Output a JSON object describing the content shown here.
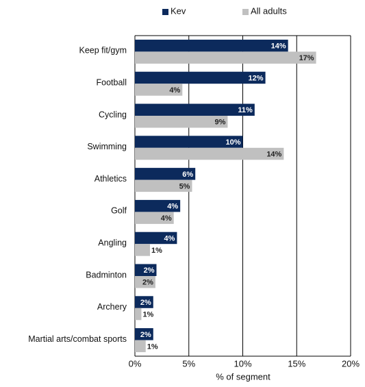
{
  "chart_data": {
    "type": "hbar",
    "xlabel": "% of segment",
    "categories": [
      "Keep fit/gym",
      "Football",
      "Cycling",
      "Swimming",
      "Athletics",
      "Golf",
      "Angling",
      "Badminton",
      "Archery",
      "Martial arts/combat sports"
    ],
    "series": [
      {
        "name": "Kev",
        "color": "#0c2a5c",
        "values": [
          14.2,
          12.1,
          11.1,
          10.0,
          5.6,
          4.2,
          3.9,
          2.0,
          1.7,
          1.7
        ],
        "value_labels": [
          "14%",
          "12%",
          "11%",
          "10%",
          "6%",
          "4%",
          "4%",
          "2%",
          "2%",
          "2%"
        ]
      },
      {
        "name": "All adults",
        "color": "#c0c0c0",
        "values": [
          16.8,
          4.4,
          8.6,
          13.8,
          5.3,
          3.6,
          1.4,
          1.9,
          0.6,
          1.0
        ],
        "value_labels": [
          "17%",
          "4%",
          "9%",
          "14%",
          "5%",
          "4%",
          "1%",
          "2%",
          "1%",
          "1%"
        ]
      }
    ],
    "xlim": [
      0,
      20
    ],
    "xticks": [
      {
        "value": 0,
        "label": "0%"
      },
      {
        "value": 5,
        "label": "5%"
      },
      {
        "value": 10,
        "label": "10%"
      },
      {
        "value": 15,
        "label": "15%"
      },
      {
        "value": 20,
        "label": "20%"
      }
    ],
    "grid": true,
    "legend": "top"
  }
}
